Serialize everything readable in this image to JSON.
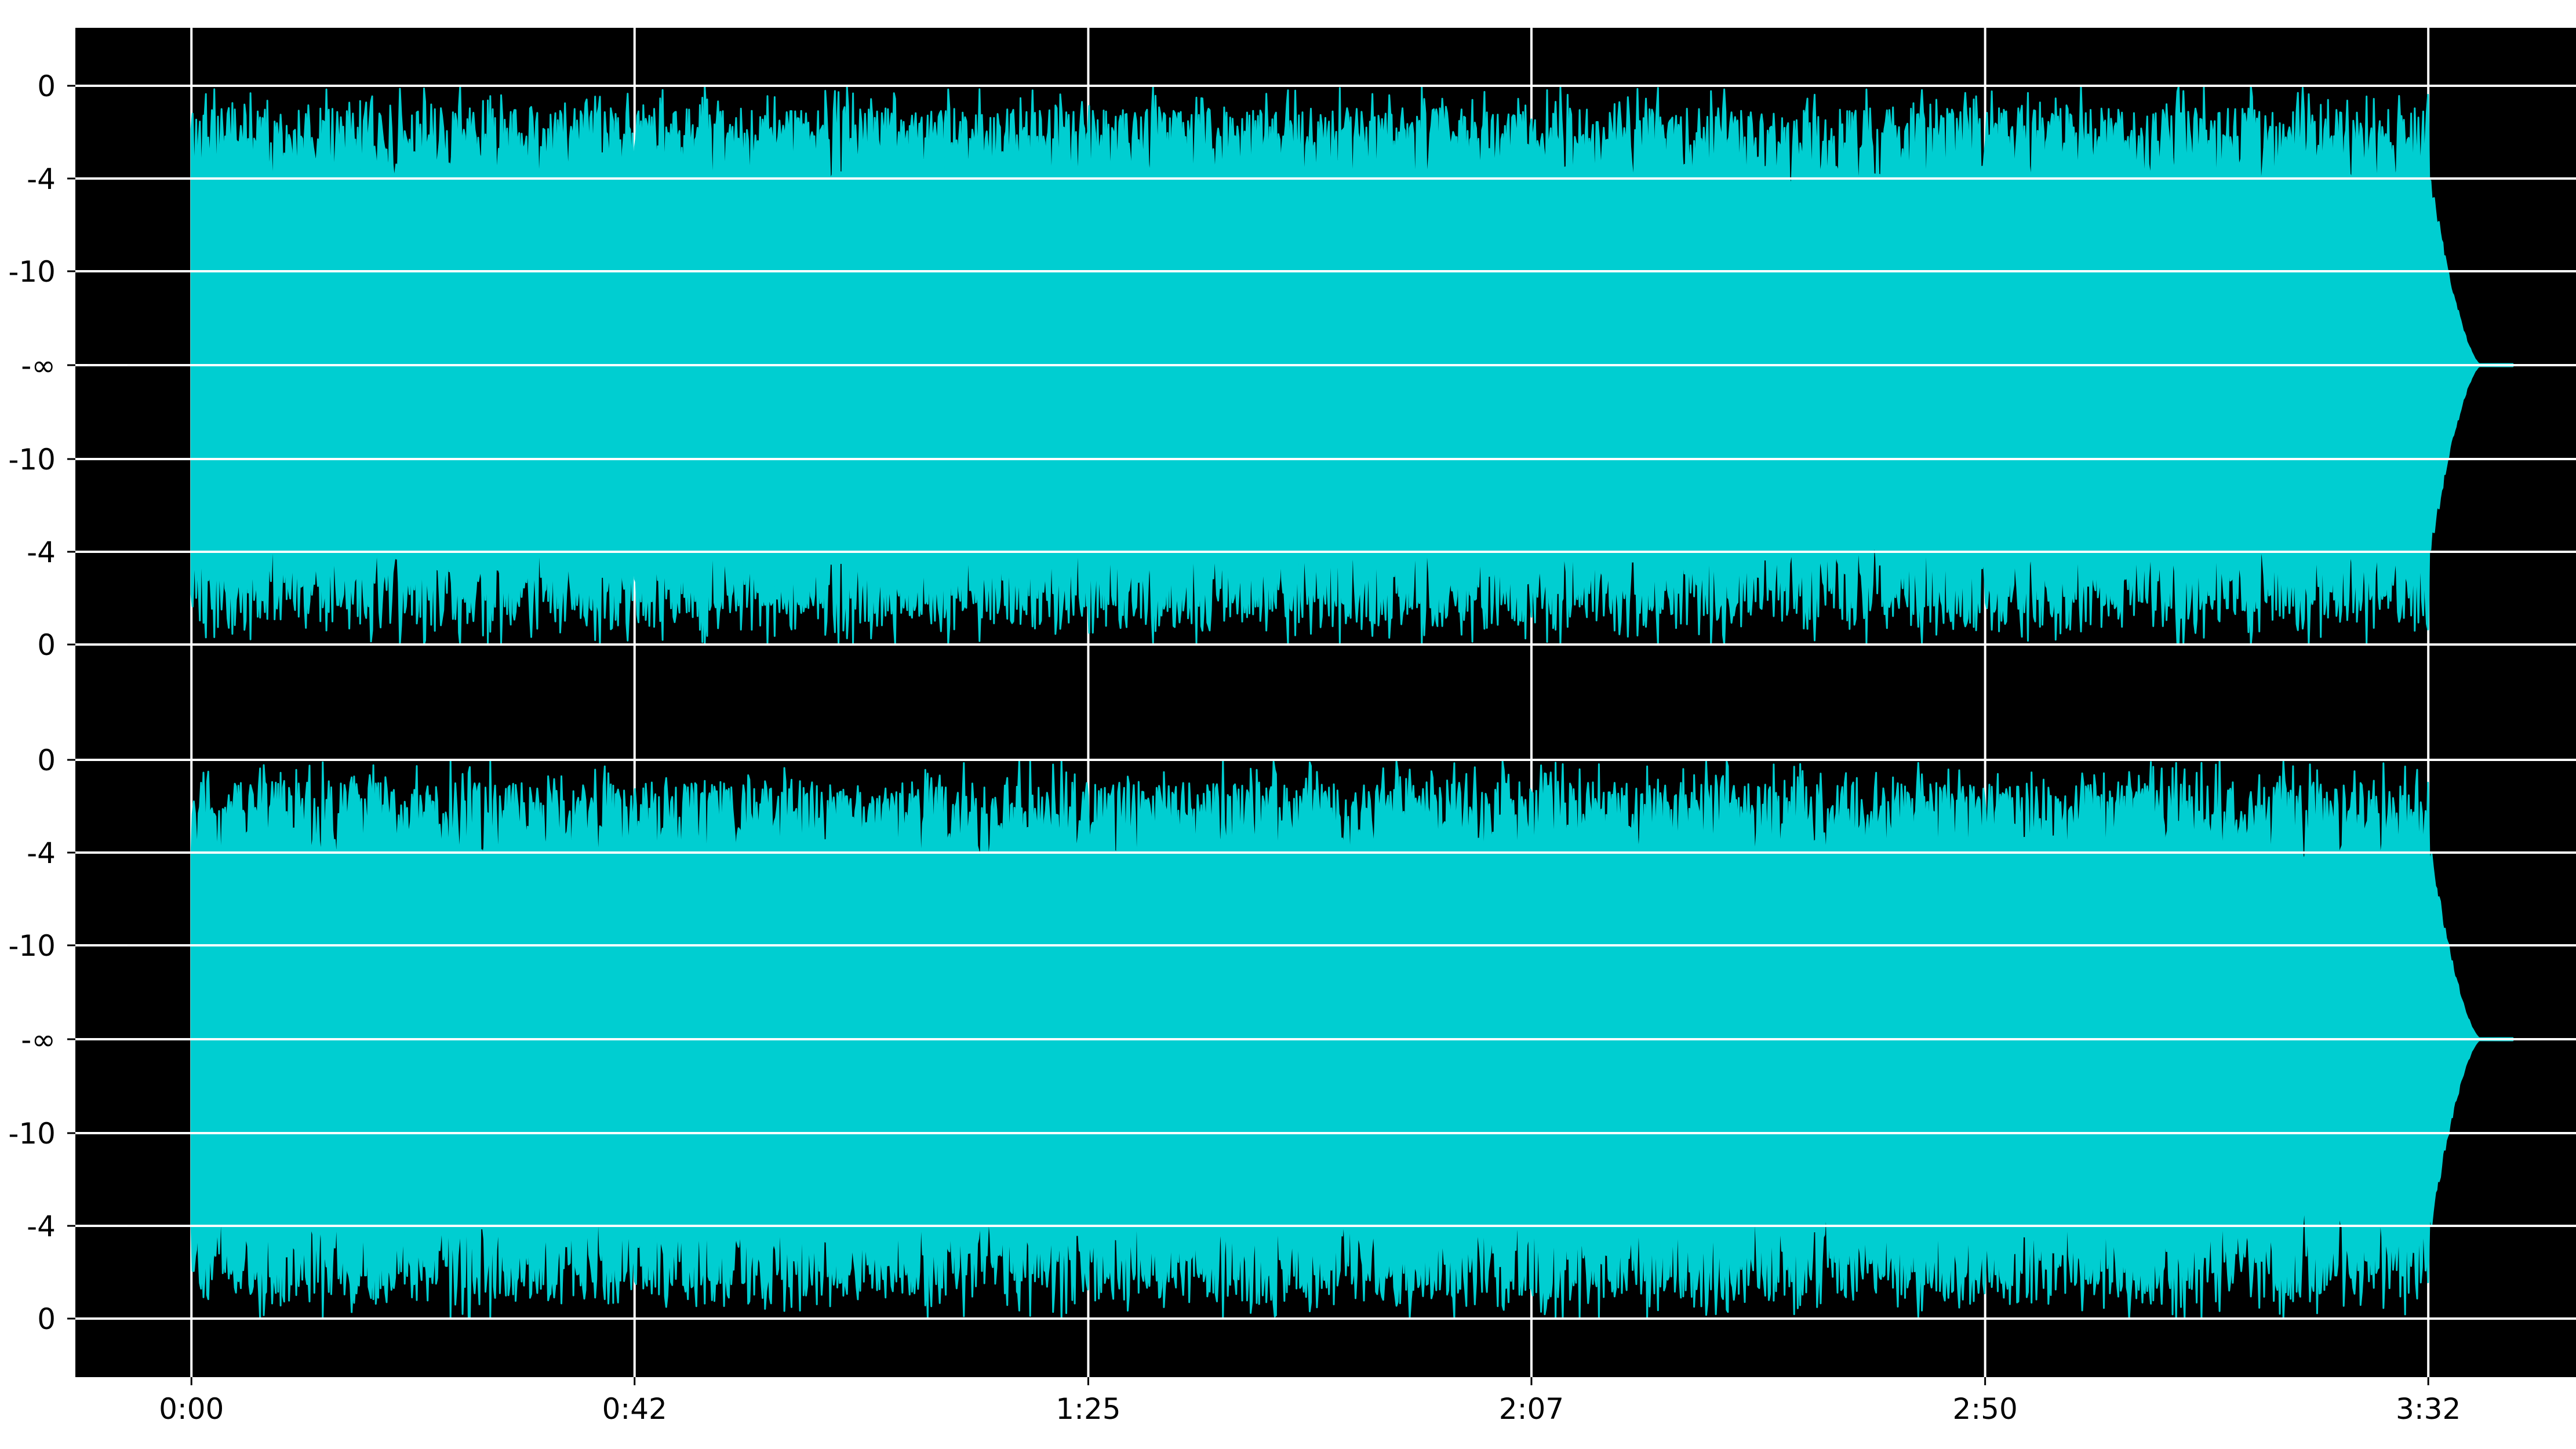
{
  "chart_data": {
    "type": "area",
    "title": "",
    "xlabel": "",
    "ylabel": "",
    "background_color": "#000000",
    "waveform_color": "#00CED1",
    "grid_color": "#FFFFFF",
    "grid": true,
    "legend": "none",
    "x_axis": {
      "unit": "m:ss",
      "ticks_seconds": [
        0,
        42,
        85,
        127,
        170,
        212
      ],
      "tick_labels": [
        "0:00",
        "0:42",
        "1:25",
        "2:07",
        "2:50",
        "3:32"
      ],
      "xlim_seconds": [
        -11,
        226
      ],
      "audio_start_seconds": 0,
      "audio_end_seconds": 217
    },
    "y_axis": {
      "unit": "dB",
      "scale": "decibel, mirrored about silence",
      "tick_labels": [
        "0",
        "-4",
        "-10",
        "-∞",
        "-10",
        "-4",
        "0"
      ]
    },
    "channels": [
      {
        "tick_labels": [
          "0",
          "-4",
          "-10",
          "-∞",
          "-10",
          "-4",
          "0"
        ],
        "typical_peak_db": -4,
        "max_peak_db": 0,
        "fade_out_start_seconds": 212,
        "silence_from_seconds": 217
      },
      {
        "tick_labels": [
          "0",
          "-4",
          "-10",
          "-∞",
          "-10",
          "-4",
          "0"
        ],
        "typical_peak_db": -4,
        "max_peak_db": 0,
        "fade_out_start_seconds": 212,
        "silence_from_seconds": 217
      }
    ]
  }
}
